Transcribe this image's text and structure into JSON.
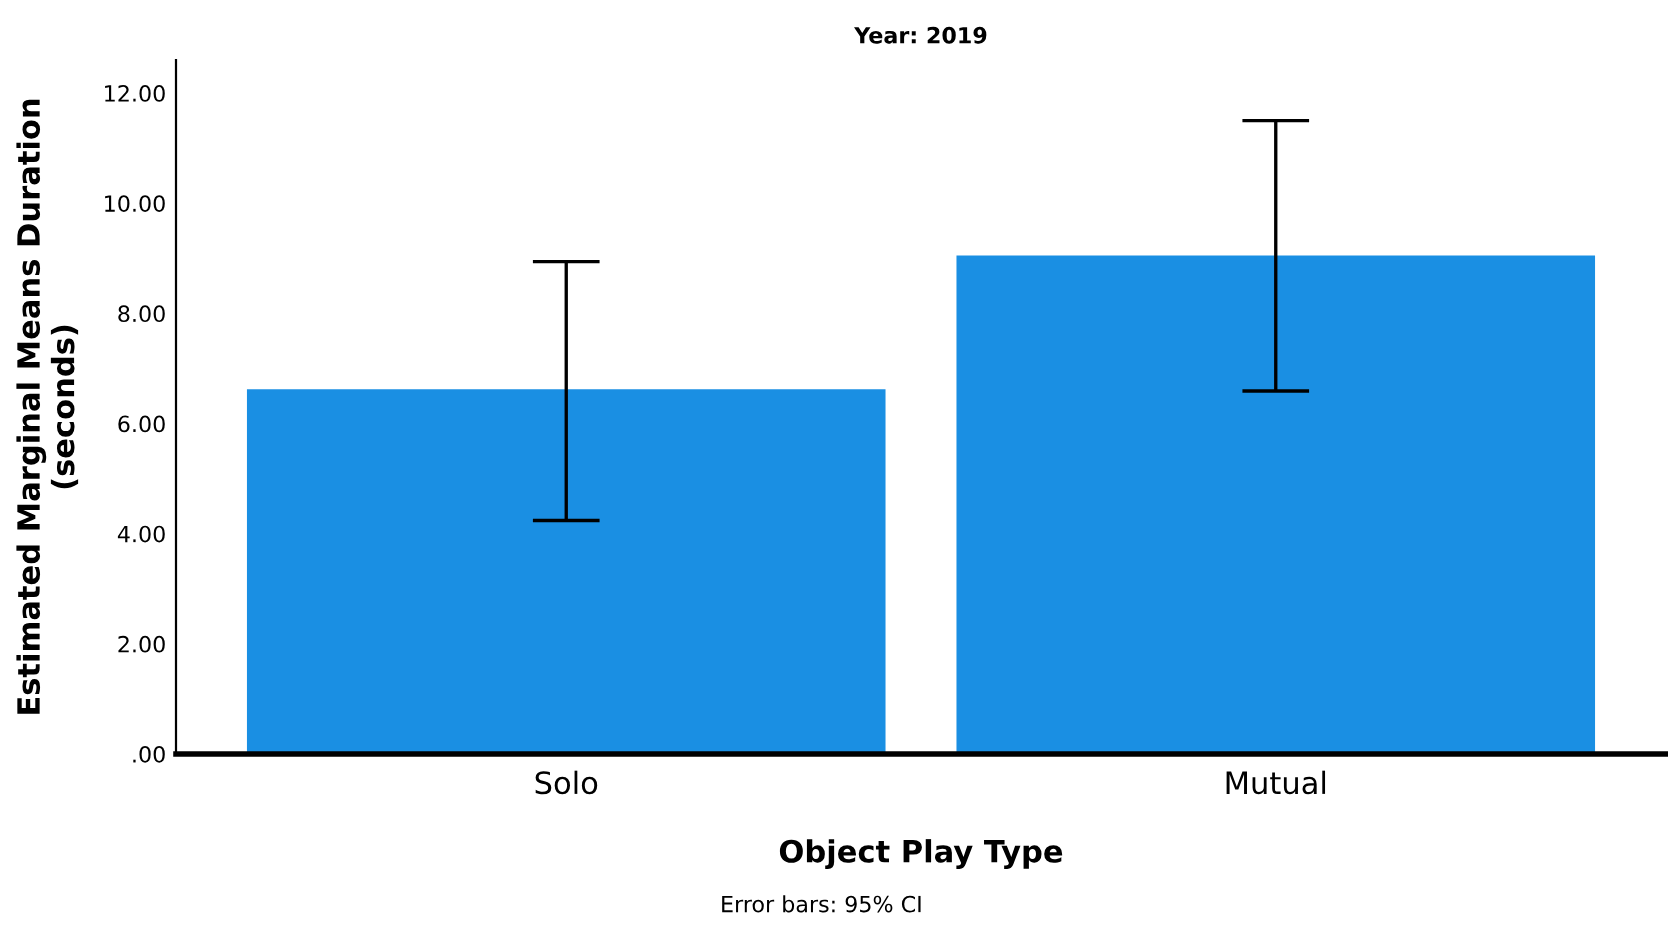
{
  "chart_data": {
    "type": "bar",
    "title": "Year: 2019",
    "xlabel": "Object Play Type",
    "ylabel": "Estimated Marginal Means Duration\n(seconds)",
    "categories": [
      "Solo",
      "Mutual"
    ],
    "values": [
      6.62,
      9.05
    ],
    "errors": [
      [
        4.24,
        8.94
      ],
      [
        6.59,
        11.5
      ]
    ],
    "color": "#1a8fe3",
    "ylim": [
      0,
      12.6
    ],
    "yticks": [
      {
        "value": 0,
        "label": ".00"
      },
      {
        "value": 2,
        "label": "2.00"
      },
      {
        "value": 4,
        "label": "4.00"
      },
      {
        "value": 6,
        "label": "6.00"
      },
      {
        "value": 8,
        "label": "8.00"
      },
      {
        "value": 10,
        "label": "10.00"
      },
      {
        "value": 12,
        "label": "12.00"
      }
    ],
    "grid": false,
    "legend": false,
    "annotations": [
      "Error bars: 95% CI"
    ]
  }
}
